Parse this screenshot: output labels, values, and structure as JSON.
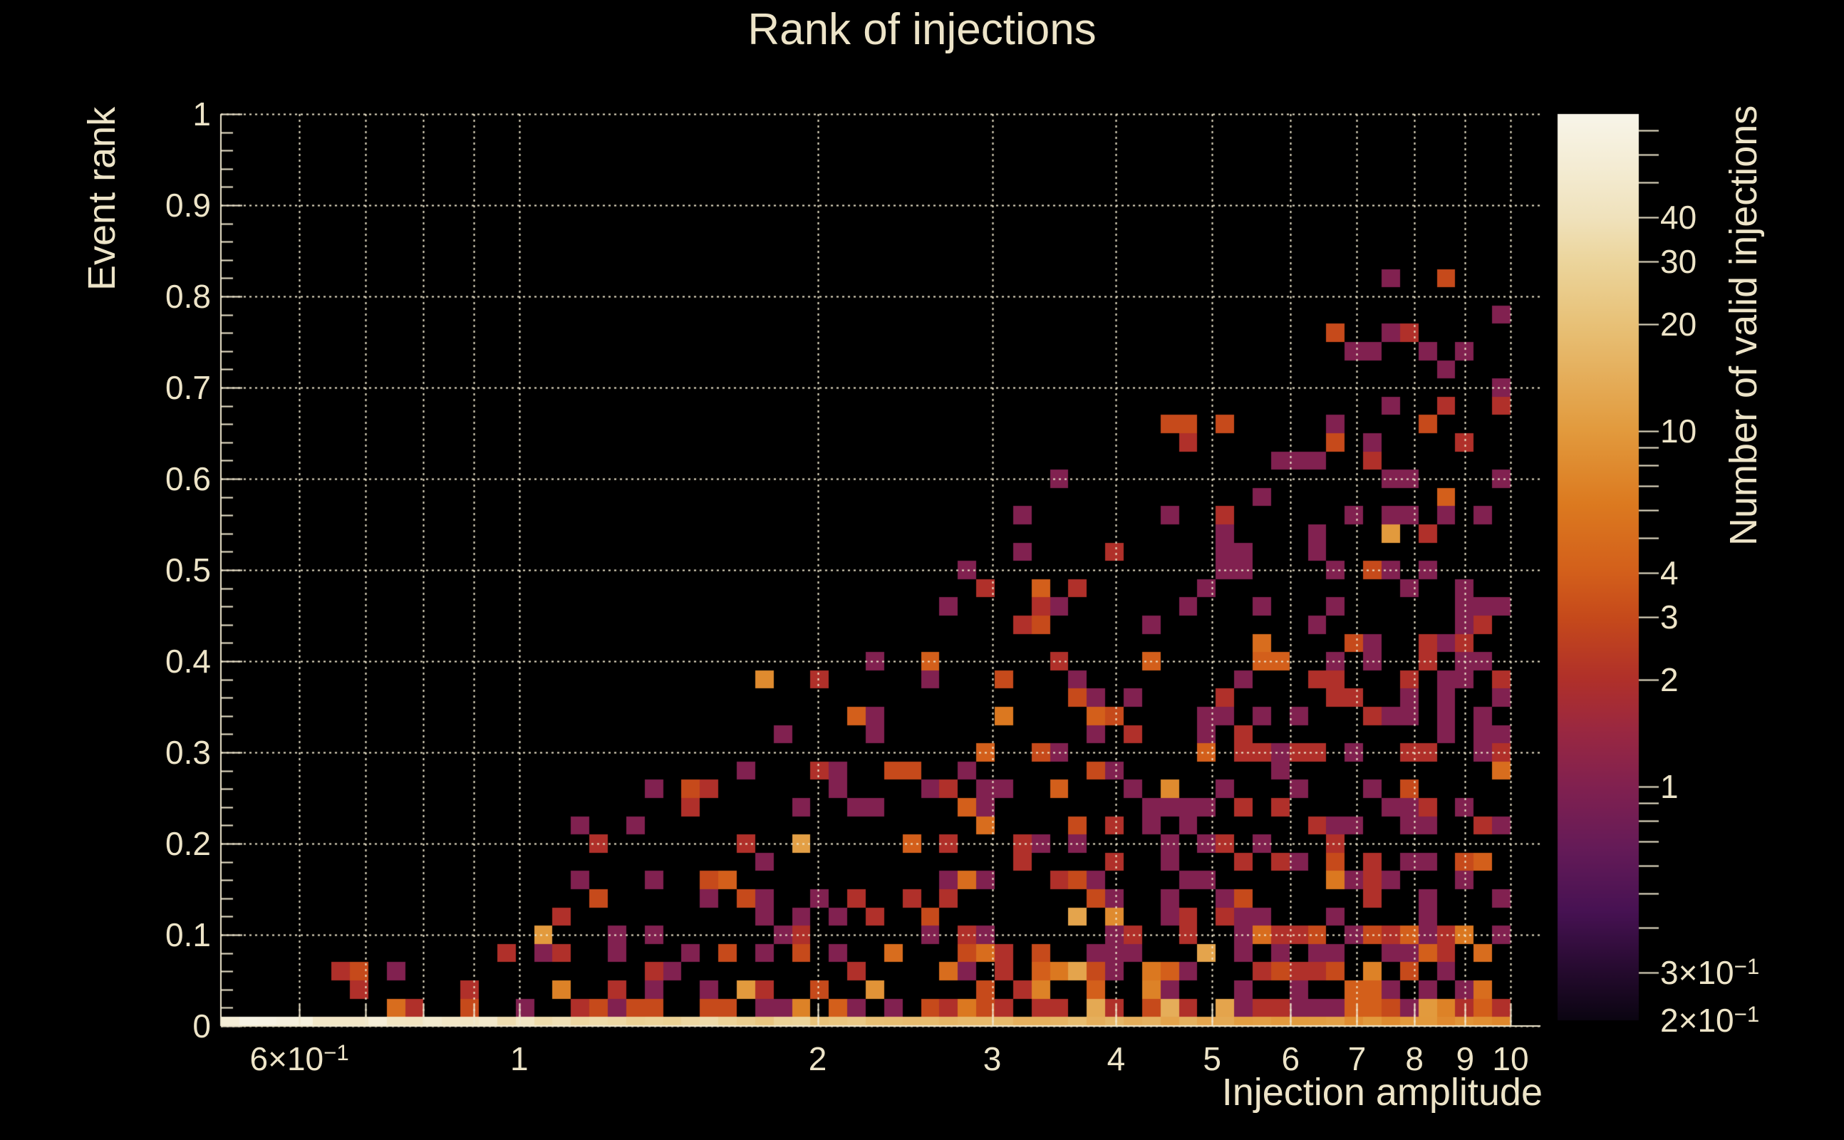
{
  "chart_data": {
    "type": "heatmap",
    "title": "Rank of injections",
    "xlabel": "Injection amplitude",
    "ylabel": "Event rank",
    "zlabel": "Number of valid injections",
    "x_scale": "log",
    "y_scale": "linear",
    "z_scale": "log",
    "x_range": [
      0.5,
      10.72
    ],
    "y_range": [
      0,
      1
    ],
    "z_range": [
      0.22,
      78
    ],
    "grid": true,
    "legend_position": "right-colorbar",
    "colors": {
      "background": "#000000",
      "foreground": "#ede4c8",
      "gridline": "#f2e9ce",
      "axis": "#f0e8cf"
    },
    "x_ticks": [
      {
        "v": 0.6,
        "base": "6×10",
        "sup": "−1"
      },
      {
        "v": 0.7
      },
      {
        "v": 0.8
      },
      {
        "v": 0.9
      },
      {
        "v": 1,
        "base": "1"
      },
      {
        "v": 2,
        "base": "2"
      },
      {
        "v": 3,
        "base": "3"
      },
      {
        "v": 4,
        "base": "4"
      },
      {
        "v": 5,
        "base": "5"
      },
      {
        "v": 6,
        "base": "6"
      },
      {
        "v": 7,
        "base": "7"
      },
      {
        "v": 8,
        "base": "8"
      },
      {
        "v": 9,
        "base": "9"
      },
      {
        "v": 10,
        "base": "10"
      }
    ],
    "y_ticks": [
      {
        "v": 1,
        "label": "1"
      },
      {
        "v": 0.9,
        "label": "0.9"
      },
      {
        "v": 0.8,
        "label": "0.8"
      },
      {
        "v": 0.7,
        "label": "0.7"
      },
      {
        "v": 0.6,
        "label": "0.6"
      },
      {
        "v": 0.5,
        "label": "0.5"
      },
      {
        "v": 0.4,
        "label": "0.4"
      },
      {
        "v": 0.3,
        "label": "0.3"
      },
      {
        "v": 0.2,
        "label": "0.2"
      },
      {
        "v": 0.1,
        "label": "0.1"
      },
      {
        "v": 0,
        "label": "0"
      }
    ],
    "y_minor_step": 0.02,
    "z_ticks": [
      {
        "v": 70
      },
      {
        "v": 60
      },
      {
        "v": 50
      },
      {
        "v": 40,
        "base": "40"
      },
      {
        "v": 30,
        "base": "30"
      },
      {
        "v": 20,
        "base": "20"
      },
      {
        "v": 10,
        "base": "10"
      },
      {
        "v": 9
      },
      {
        "v": 8
      },
      {
        "v": 7
      },
      {
        "v": 6
      },
      {
        "v": 5
      },
      {
        "v": 4,
        "base": "4"
      },
      {
        "v": 3,
        "base": "3"
      },
      {
        "v": 2,
        "base": "2"
      },
      {
        "v": 1,
        "base": "1"
      },
      {
        "v": 0.9
      },
      {
        "v": 0.8
      },
      {
        "v": 0.7
      },
      {
        "v": 0.6
      },
      {
        "v": 0.5
      },
      {
        "v": 0.4
      },
      {
        "v": 0.3,
        "base": "3×10",
        "sup": "−1"
      },
      {
        "v": 0.2,
        "base": "2×10",
        "sup": "−1",
        "label_only": true
      }
    ],
    "colormap_stops": [
      [
        0.0,
        "#0b0512"
      ],
      [
        0.05,
        "#230a2c"
      ],
      [
        0.12,
        "#471253"
      ],
      [
        0.19,
        "#651b58"
      ],
      [
        0.258,
        "#812150"
      ],
      [
        0.32,
        "#9a2841"
      ],
      [
        0.376,
        "#b0302a"
      ],
      [
        0.445,
        "#c64a1b"
      ],
      [
        0.494,
        "#d35f1b"
      ],
      [
        0.57,
        "#dc7a20"
      ],
      [
        0.65,
        "#e29a3d"
      ],
      [
        0.768,
        "#e8c177"
      ],
      [
        0.837,
        "#ecd59c"
      ],
      [
        0.886,
        "#f0e2bc"
      ],
      [
        0.94,
        "#f4ecd3"
      ],
      [
        1.0,
        "#f8f5e9"
      ]
    ],
    "bins": {
      "nx": 70,
      "ny": 50,
      "x_data_min": 0.5,
      "x_data_max": 10,
      "note": "2D histogram, log-spaced amplitude bins 0.5-10, rank bins 0-1; bottom row (rank=0) holds most injections, cream->orange falloff with amplitude; scattered counts fill a rising triangular envelope",
      "bottom_row": {
        "peak_count": 65,
        "falloff_exponent": 0.72,
        "noise_range": [
          0.85,
          1.2
        ]
      },
      "scatter": {
        "seed": 911,
        "envelope_max_rank": 0.88,
        "envelope_formula": "min(0.88, 0.95*log10(2x)/log10(20))",
        "density_formula": "clamp(0.12+0.35*log10(2x)/log10(20), 0.04, 0.5)",
        "count_distribution": "mostly 1 (maroon), some 2-4 (red/orange), rare 5-14; brighter near rank 0"
      }
    }
  }
}
